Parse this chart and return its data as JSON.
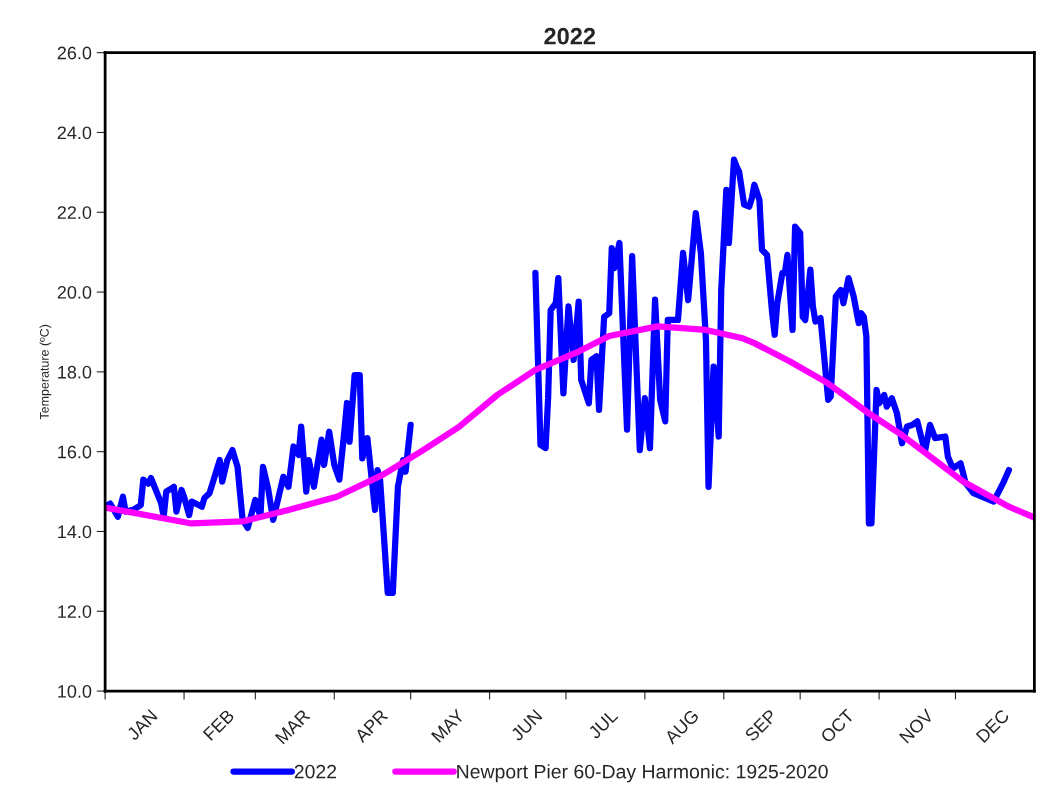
{
  "chart_data": {
    "type": "line",
    "title": "2022",
    "ylabel": "Temperature (ºC)",
    "xlim": [
      "2022-01-01",
      "2023-01-01"
    ],
    "ylim": [
      10,
      26
    ],
    "yticks": [
      {
        "value": 10,
        "label": "10.0"
      },
      {
        "value": 12,
        "label": "12.0"
      },
      {
        "value": 14,
        "label": "14.0"
      },
      {
        "value": 16,
        "label": "16.0"
      },
      {
        "value": 18,
        "label": "18.0"
      },
      {
        "value": 20,
        "label": "20.0"
      },
      {
        "value": 22,
        "label": "22.0"
      },
      {
        "value": 24,
        "label": "24.0"
      },
      {
        "value": 26,
        "label": "26.0"
      }
    ],
    "xticks": [
      {
        "value": "2022-01-01",
        "label": null
      },
      {
        "value": "2022-02-01",
        "label": null
      },
      {
        "value": "2022-03-01",
        "label": null
      },
      {
        "value": "2022-04-01",
        "label": null
      },
      {
        "value": "2022-05-01",
        "label": null
      },
      {
        "value": "2022-06-01",
        "label": null
      },
      {
        "value": "2022-07-01",
        "label": null
      },
      {
        "value": "2022-08-01",
        "label": null
      },
      {
        "value": "2022-09-01",
        "label": null
      },
      {
        "value": "2022-10-01",
        "label": null
      },
      {
        "value": "2022-11-01",
        "label": null
      },
      {
        "value": "2022-12-01",
        "label": null
      },
      {
        "value": "2022-01-16",
        "label": "JAN"
      },
      {
        "value": "2022-02-15",
        "label": "FEB"
      },
      {
        "value": "2022-03-16",
        "label": "MAR"
      },
      {
        "value": "2022-04-16",
        "label": "APR"
      },
      {
        "value": "2022-05-16",
        "label": "MAY"
      },
      {
        "value": "2022-06-16",
        "label": "JUN"
      },
      {
        "value": "2022-07-16",
        "label": "JUL"
      },
      {
        "value": "2022-08-16",
        "label": "AUG"
      },
      {
        "value": "2022-09-16",
        "label": "SEP"
      },
      {
        "value": "2022-10-16",
        "label": "OCT"
      },
      {
        "value": "2022-11-16",
        "label": "NOV"
      },
      {
        "value": "2022-12-16",
        "label": "DEC"
      }
    ],
    "grid": false,
    "legend": "bottom",
    "marker": "none",
    "line_style": "solid",
    "series": [
      {
        "name": "2022",
        "color": "#0000ff",
        "x": [
          "2022-01-02",
          "2022-01-03",
          "2022-01-06",
          "2022-01-08",
          "2022-01-09",
          "2022-01-12",
          "2022-01-15",
          "2022-01-16",
          "2022-01-18",
          "2022-01-19",
          "2022-01-23",
          "2022-01-24",
          "2022-01-25",
          "2022-01-28",
          "2022-01-29",
          "2022-01-31",
          "2022-02-01",
          "2022-02-03",
          "2022-02-04",
          "2022-02-08",
          "2022-02-09",
          "2022-02-11",
          "2022-02-15",
          "2022-02-16",
          "2022-02-18",
          "2022-02-20",
          "2022-02-22",
          "2022-02-24",
          "2022-02-26",
          "2022-03-01",
          "2022-03-03",
          "2022-03-04",
          "2022-03-06",
          "2022-03-08",
          "2022-03-12",
          "2022-03-14",
          "2022-03-16",
          "2022-03-18",
          "2022-03-19",
          "2022-03-21",
          "2022-03-22",
          "2022-03-24",
          "2022-03-27",
          "2022-03-28",
          "2022-03-30",
          "2022-04-01",
          "2022-04-03",
          "2022-04-05",
          "2022-04-06",
          "2022-04-07",
          "2022-04-09",
          "2022-04-11",
          "2022-04-12",
          "2022-04-14",
          "2022-04-17",
          "2022-04-18",
          "2022-04-19",
          "2022-04-22",
          "2022-04-24",
          "2022-04-26",
          "2022-04-28",
          "2022-04-29",
          "2022-05-01",
          "2022-05-25",
          "2022-06-19",
          "2022-06-21",
          "2022-06-23",
          "2022-06-24",
          "2022-06-25",
          "2022-06-27",
          "2022-06-28",
          "2022-06-30",
          "2022-07-02",
          "2022-07-04",
          "2022-07-06",
          "2022-07-07",
          "2022-07-10",
          "2022-07-11",
          "2022-07-13",
          "2022-07-14",
          "2022-07-16",
          "2022-07-18",
          "2022-07-19",
          "2022-07-20",
          "2022-07-22",
          "2022-07-25",
          "2022-07-27",
          "2022-07-30",
          "2022-08-01",
          "2022-08-03",
          "2022-08-05",
          "2022-08-07",
          "2022-08-09",
          "2022-08-10",
          "2022-08-14",
          "2022-08-16",
          "2022-08-18",
          "2022-08-21",
          "2022-08-23",
          "2022-08-25",
          "2022-08-26",
          "2022-08-28",
          "2022-08-30",
          "2022-08-31",
          "2022-09-02",
          "2022-09-03",
          "2022-09-05",
          "2022-09-06",
          "2022-09-07",
          "2022-09-09",
          "2022-09-11",
          "2022-09-12",
          "2022-09-13",
          "2022-09-15",
          "2022-09-16",
          "2022-09-18",
          "2022-09-20",
          "2022-09-21",
          "2022-09-22",
          "2022-09-24",
          "2022-09-25",
          "2022-09-26",
          "2022-09-28",
          "2022-09-29",
          "2022-10-01",
          "2022-10-02",
          "2022-10-03",
          "2022-10-05",
          "2022-10-06",
          "2022-10-07",
          "2022-10-09",
          "2022-10-12",
          "2022-10-13",
          "2022-10-15",
          "2022-10-17",
          "2022-10-18",
          "2022-10-20",
          "2022-10-22",
          "2022-10-24",
          "2022-10-25",
          "2022-10-26",
          "2022-10-27",
          "2022-10-28",
          "2022-10-29",
          "2022-10-31",
          "2022-11-01",
          "2022-11-03",
          "2022-11-04",
          "2022-11-06",
          "2022-11-08",
          "2022-11-10",
          "2022-11-12",
          "2022-11-14",
          "2022-11-16",
          "2022-11-19",
          "2022-11-21",
          "2022-11-23",
          "2022-11-27",
          "2022-11-28",
          "2022-11-30",
          "2022-12-03",
          "2022-12-05",
          "2022-12-08",
          "2022-12-13",
          "2022-12-16",
          "2022-12-18",
          "2022-12-20",
          "2022-12-22"
        ],
        "values": [
          14.66,
          14.7,
          14.37,
          14.87,
          14.5,
          14.54,
          14.66,
          15.3,
          15.2,
          15.34,
          14.71,
          14.37,
          15.0,
          15.12,
          14.5,
          15.04,
          14.87,
          14.41,
          14.75,
          14.62,
          14.84,
          14.96,
          15.79,
          15.25,
          15.79,
          16.04,
          15.62,
          14.29,
          14.09,
          14.79,
          14.37,
          15.62,
          15.08,
          14.29,
          15.37,
          15.12,
          16.13,
          15.92,
          16.63,
          15.0,
          15.79,
          15.12,
          16.3,
          15.67,
          16.5,
          15.67,
          15.3,
          16.54,
          17.22,
          16.25,
          17.92,
          17.92,
          15.83,
          16.34,
          14.54,
          15.54,
          15.29,
          12.46,
          12.46,
          15.12,
          15.79,
          15.5,
          16.67,
          null,
          20.48,
          16.17,
          16.09,
          17.34,
          19.55,
          19.72,
          20.35,
          17.46,
          19.64,
          18.3,
          19.76,
          17.8,
          17.21,
          18.3,
          18.39,
          17.05,
          19.38,
          19.47,
          21.1,
          20.6,
          21.23,
          16.55,
          20.9,
          16.04,
          17.34,
          16.09,
          19.81,
          17.3,
          16.76,
          19.3,
          19.3,
          20.98,
          19.8,
          21.98,
          20.98,
          18.8,
          15.12,
          18.13,
          16.38,
          20.05,
          22.56,
          21.23,
          23.32,
          23.15,
          23.02,
          22.19,
          22.14,
          22.35,
          22.69,
          22.31,
          21.06,
          20.93,
          19.47,
          18.93,
          19.72,
          20.48,
          20.48,
          20.93,
          19.05,
          21.64,
          21.48,
          19.38,
          19.3,
          20.56,
          19.64,
          19.26,
          19.35,
          17.3,
          17.38,
          19.89,
          20.05,
          19.72,
          20.35,
          19.89,
          19.22,
          19.47,
          19.38,
          18.89,
          14.2,
          14.2,
          17.55,
          17.21,
          17.42,
          17.13,
          17.34,
          16.96,
          16.21,
          16.63,
          16.67,
          16.76,
          16.0,
          16.67,
          16.34,
          16.38,
          15.88,
          15.58,
          15.71,
          15.21,
          14.96,
          14.83,
          14.75,
          15.0,
          15.25,
          15.54
        ]
      },
      {
        "name": "Newport Pier 60-Day Harmonic: 1925-2020",
        "color": "#ff00ff",
        "x": [
          "2022-01-01",
          "2022-02-04",
          "2022-02-24",
          "2022-03-14",
          "2022-04-02",
          "2022-04-20",
          "2022-05-05",
          "2022-05-20",
          "2022-06-04",
          "2022-06-19",
          "2022-07-06",
          "2022-07-18",
          "2022-08-06",
          "2022-08-25",
          "2022-09-08",
          "2022-09-13",
          "2022-09-27",
          "2022-10-11",
          "2022-10-28",
          "2022-11-09",
          "2022-12-04",
          "2022-12-22",
          "2023-01-01"
        ],
        "values": [
          14.6,
          14.2,
          14.25,
          14.54,
          14.87,
          15.42,
          16.0,
          16.62,
          17.42,
          18.05,
          18.51,
          18.9,
          19.14,
          19.05,
          18.85,
          18.72,
          18.26,
          17.75,
          16.96,
          16.46,
          15.25,
          14.62,
          14.35
        ]
      }
    ]
  }
}
